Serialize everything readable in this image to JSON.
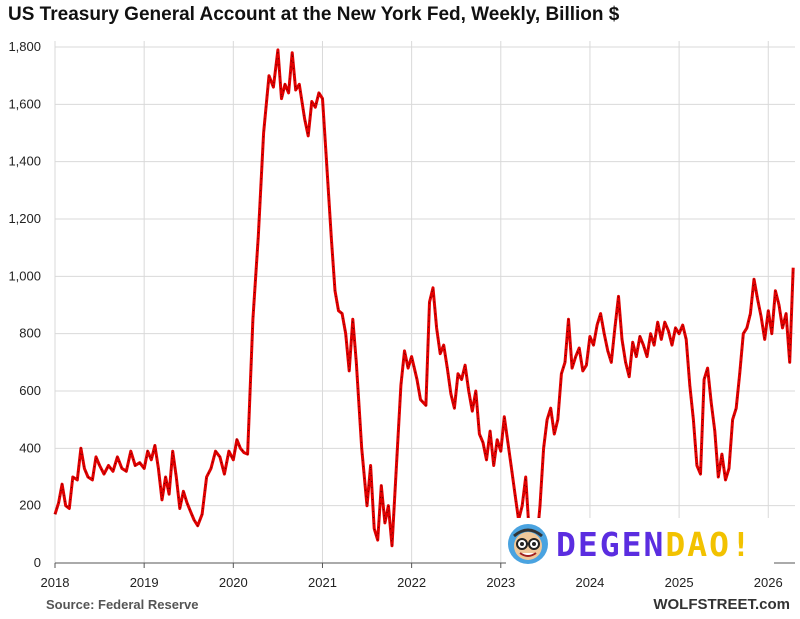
{
  "title": "US Treasury General Account at the New York Fed, Weekly, Billion $",
  "source": "Source: Federal Reserve",
  "site": "WOLFSTREET.com",
  "watermark": {
    "part1": "DEGEN",
    "part2": "DAO!",
    "color1": "#5b2de0",
    "color2": "#f2c200"
  },
  "colors": {
    "line": "#e00000",
    "grid": "#d9d9d9",
    "axis": "#555555"
  },
  "chart_data": {
    "type": "line",
    "title": "US Treasury General Account at the New York Fed, Weekly, Billion $",
    "xlabel": "",
    "ylabel": "",
    "xlim": [
      2018.0,
      2026.3
    ],
    "ylim": [
      0,
      1800
    ],
    "yticks": [
      0,
      200,
      400,
      600,
      800,
      1000,
      1200,
      1400,
      1600,
      1800
    ],
    "ytick_labels": [
      "0",
      "200",
      "400",
      "600",
      "800",
      "1,000",
      "1,200",
      "1,400",
      "1,600",
      "1,800"
    ],
    "xticks": [
      2018,
      2019,
      2020,
      2021,
      2022,
      2023,
      2024,
      2025,
      2026
    ],
    "xtick_labels": [
      "2018",
      "2019",
      "2020",
      "2021",
      "2022",
      "2023",
      "2024",
      "2025",
      "2026"
    ],
    "grid": true,
    "series": [
      {
        "points": [
          [
            2018.0,
            170
          ],
          [
            2018.04,
            210
          ],
          [
            2018.08,
            275
          ],
          [
            2018.12,
            200
          ],
          [
            2018.16,
            190
          ],
          [
            2018.2,
            300
          ],
          [
            2018.25,
            290
          ],
          [
            2018.29,
            400
          ],
          [
            2018.33,
            330
          ],
          [
            2018.37,
            300
          ],
          [
            2018.42,
            290
          ],
          [
            2018.46,
            370
          ],
          [
            2018.5,
            340
          ],
          [
            2018.55,
            310
          ],
          [
            2018.6,
            340
          ],
          [
            2018.65,
            320
          ],
          [
            2018.7,
            370
          ],
          [
            2018.75,
            330
          ],
          [
            2018.8,
            320
          ],
          [
            2018.85,
            390
          ],
          [
            2018.9,
            340
          ],
          [
            2018.95,
            350
          ],
          [
            2019.0,
            330
          ],
          [
            2019.04,
            390
          ],
          [
            2019.08,
            360
          ],
          [
            2019.12,
            410
          ],
          [
            2019.16,
            330
          ],
          [
            2019.2,
            220
          ],
          [
            2019.24,
            300
          ],
          [
            2019.28,
            240
          ],
          [
            2019.32,
            390
          ],
          [
            2019.36,
            300
          ],
          [
            2019.4,
            190
          ],
          [
            2019.44,
            250
          ],
          [
            2019.48,
            210
          ],
          [
            2019.52,
            180
          ],
          [
            2019.56,
            150
          ],
          [
            2019.6,
            130
          ],
          [
            2019.65,
            170
          ],
          [
            2019.7,
            300
          ],
          [
            2019.75,
            330
          ],
          [
            2019.8,
            390
          ],
          [
            2019.85,
            370
          ],
          [
            2019.9,
            310
          ],
          [
            2019.95,
            390
          ],
          [
            2020.0,
            360
          ],
          [
            2020.04,
            430
          ],
          [
            2020.08,
            400
          ],
          [
            2020.12,
            385
          ],
          [
            2020.16,
            380
          ],
          [
            2020.22,
            850
          ],
          [
            2020.28,
            1140
          ],
          [
            2020.34,
            1500
          ],
          [
            2020.4,
            1700
          ],
          [
            2020.45,
            1660
          ],
          [
            2020.5,
            1790
          ],
          [
            2020.54,
            1620
          ],
          [
            2020.58,
            1670
          ],
          [
            2020.62,
            1640
          ],
          [
            2020.66,
            1780
          ],
          [
            2020.7,
            1650
          ],
          [
            2020.74,
            1670
          ],
          [
            2020.8,
            1550
          ],
          [
            2020.84,
            1490
          ],
          [
            2020.88,
            1610
          ],
          [
            2020.92,
            1590
          ],
          [
            2020.96,
            1640
          ],
          [
            2021.0,
            1620
          ],
          [
            2021.04,
            1430
          ],
          [
            2021.1,
            1130
          ],
          [
            2021.14,
            950
          ],
          [
            2021.18,
            880
          ],
          [
            2021.22,
            870
          ],
          [
            2021.26,
            800
          ],
          [
            2021.3,
            670
          ],
          [
            2021.34,
            850
          ],
          [
            2021.38,
            700
          ],
          [
            2021.44,
            400
          ],
          [
            2021.5,
            200
          ],
          [
            2021.54,
            340
          ],
          [
            2021.58,
            120
          ],
          [
            2021.62,
            80
          ],
          [
            2021.66,
            270
          ],
          [
            2021.7,
            140
          ],
          [
            2021.74,
            200
          ],
          [
            2021.78,
            60
          ],
          [
            2021.84,
            400
          ],
          [
            2021.88,
            620
          ],
          [
            2021.92,
            740
          ],
          [
            2021.96,
            680
          ],
          [
            2022.0,
            720
          ],
          [
            2022.06,
            640
          ],
          [
            2022.1,
            570
          ],
          [
            2022.16,
            550
          ],
          [
            2022.2,
            910
          ],
          [
            2022.24,
            960
          ],
          [
            2022.28,
            820
          ],
          [
            2022.32,
            730
          ],
          [
            2022.36,
            760
          ],
          [
            2022.4,
            680
          ],
          [
            2022.44,
            590
          ],
          [
            2022.48,
            540
          ],
          [
            2022.52,
            660
          ],
          [
            2022.56,
            640
          ],
          [
            2022.6,
            690
          ],
          [
            2022.64,
            600
          ],
          [
            2022.68,
            530
          ],
          [
            2022.72,
            600
          ],
          [
            2022.76,
            450
          ],
          [
            2022.8,
            420
          ],
          [
            2022.84,
            360
          ],
          [
            2022.88,
            460
          ],
          [
            2022.92,
            340
          ],
          [
            2022.96,
            430
          ],
          [
            2023.0,
            390
          ],
          [
            2023.04,
            510
          ],
          [
            2023.08,
            420
          ],
          [
            2023.12,
            330
          ],
          [
            2023.16,
            240
          ],
          [
            2023.2,
            150
          ],
          [
            2023.24,
            200
          ],
          [
            2023.28,
            300
          ],
          [
            2023.32,
            100
          ],
          [
            2023.36,
            90
          ],
          [
            2023.4,
            60
          ],
          [
            2023.44,
            200
          ],
          [
            2023.48,
            400
          ],
          [
            2023.52,
            500
          ],
          [
            2023.56,
            540
          ],
          [
            2023.6,
            450
          ],
          [
            2023.64,
            500
          ],
          [
            2023.68,
            660
          ],
          [
            2023.72,
            700
          ],
          [
            2023.76,
            850
          ],
          [
            2023.8,
            680
          ],
          [
            2023.84,
            720
          ],
          [
            2023.88,
            750
          ],
          [
            2023.92,
            670
          ],
          [
            2023.96,
            690
          ],
          [
            2024.0,
            790
          ],
          [
            2024.04,
            760
          ],
          [
            2024.08,
            830
          ],
          [
            2024.12,
            870
          ],
          [
            2024.16,
            800
          ],
          [
            2024.2,
            740
          ],
          [
            2024.24,
            700
          ],
          [
            2024.28,
            820
          ],
          [
            2024.32,
            930
          ],
          [
            2024.36,
            780
          ],
          [
            2024.4,
            700
          ],
          [
            2024.44,
            650
          ],
          [
            2024.48,
            770
          ],
          [
            2024.52,
            720
          ],
          [
            2024.56,
            790
          ],
          [
            2024.6,
            760
          ],
          [
            2024.64,
            720
          ],
          [
            2024.68,
            800
          ],
          [
            2024.72,
            760
          ],
          [
            2024.76,
            840
          ],
          [
            2024.8,
            780
          ],
          [
            2024.84,
            840
          ],
          [
            2024.88,
            810
          ],
          [
            2024.92,
            760
          ],
          [
            2024.96,
            820
          ],
          [
            2025.0,
            800
          ],
          [
            2025.04,
            830
          ],
          [
            2025.08,
            780
          ],
          [
            2025.12,
            620
          ],
          [
            2025.16,
            500
          ],
          [
            2025.2,
            340
          ],
          [
            2025.24,
            310
          ],
          [
            2025.28,
            640
          ],
          [
            2025.32,
            680
          ],
          [
            2025.36,
            560
          ],
          [
            2025.4,
            460
          ],
          [
            2025.44,
            300
          ],
          [
            2025.48,
            380
          ],
          [
            2025.52,
            290
          ],
          [
            2025.56,
            330
          ],
          [
            2025.6,
            500
          ],
          [
            2025.64,
            540
          ],
          [
            2025.68,
            660
          ],
          [
            2025.72,
            800
          ],
          [
            2025.76,
            820
          ],
          [
            2025.8,
            870
          ],
          [
            2025.84,
            990
          ],
          [
            2025.88,
            920
          ],
          [
            2025.92,
            860
          ],
          [
            2025.96,
            780
          ],
          [
            2026.0,
            880
          ],
          [
            2026.04,
            800
          ],
          [
            2026.08,
            950
          ],
          [
            2026.12,
            900
          ],
          [
            2026.16,
            820
          ],
          [
            2026.2,
            870
          ],
          [
            2026.24,
            700
          ],
          [
            2026.28,
            1030
          ]
        ]
      }
    ]
  }
}
